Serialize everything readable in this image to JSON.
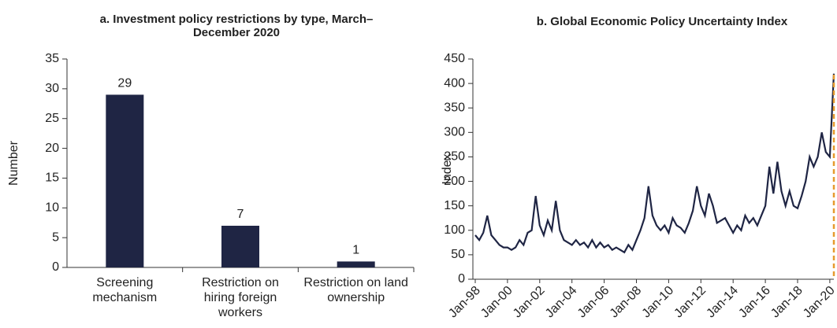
{
  "chart_data": [
    {
      "type": "bar",
      "title": "a. Investment policy restrictions by type, March–December 2020",
      "ylabel": "Number",
      "categories": [
        "Screening mechanism",
        "Restriction on hiring foreign workers",
        "Restriction on land ownership"
      ],
      "values": [
        29,
        7,
        1
      ],
      "color": "#1f2544",
      "ylim": [
        0,
        35
      ],
      "yticks": [
        0,
        5,
        10,
        15,
        20,
        25,
        30,
        35
      ]
    },
    {
      "type": "line",
      "title": "b. Global Economic Policy Uncertainty Index",
      "ylabel": "Index",
      "categories": [
        "Jan-98",
        null,
        null,
        null,
        null,
        null,
        null,
        null,
        "Jan-00",
        null,
        null,
        null,
        null,
        null,
        null,
        null,
        "Jan-02",
        null,
        null,
        null,
        null,
        null,
        null,
        null,
        "Jan-04",
        null,
        null,
        null,
        null,
        null,
        null,
        null,
        "Jan-06",
        null,
        null,
        null,
        null,
        null,
        null,
        null,
        "Jan-08",
        null,
        null,
        null,
        null,
        null,
        null,
        null,
        "Jan-10",
        null,
        null,
        null,
        null,
        null,
        null,
        null,
        "Jan-12",
        null,
        null,
        null,
        null,
        null,
        null,
        null,
        "Jan-14",
        null,
        null,
        null,
        null,
        null,
        null,
        null,
        "Jan-16",
        null,
        null,
        null,
        null,
        null,
        null,
        null,
        "Jan-18",
        null,
        null,
        null,
        null,
        null,
        null,
        null,
        "Jan-20",
        null
      ],
      "series": [
        {
          "color": "#1f2544",
          "values": [
            90,
            80,
            95,
            130,
            90,
            80,
            70,
            65,
            65,
            60,
            65,
            80,
            70,
            95,
            100,
            170,
            110,
            90,
            120,
            100,
            160,
            100,
            80,
            75,
            70,
            80,
            70,
            75,
            65,
            80,
            65,
            75,
            65,
            70,
            60,
            65,
            60,
            55,
            70,
            60,
            80,
            100,
            125,
            190,
            130,
            110,
            100,
            110,
            95,
            125,
            110,
            105,
            95,
            115,
            140,
            190,
            150,
            130,
            175,
            150,
            115,
            120,
            125,
            110,
            95,
            110,
            100,
            130,
            115,
            125,
            110,
            130,
            150,
            230,
            175,
            240,
            180,
            150,
            180,
            150,
            145,
            170,
            200,
            250,
            230,
            250,
            300,
            260,
            250,
            420
          ]
        }
      ],
      "ylim": [
        0,
        450
      ],
      "yticks": [
        0,
        50,
        100,
        150,
        200,
        250,
        300,
        350,
        400,
        450
      ]
    }
  ]
}
